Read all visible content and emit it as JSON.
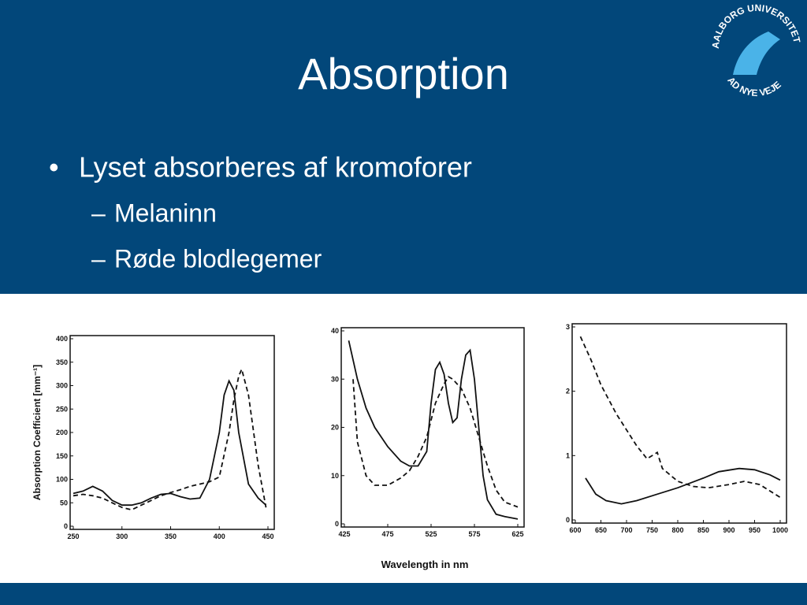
{
  "slide": {
    "title": "Absorption",
    "logo": {
      "top": "AALBORG UNIVERSITET",
      "bottom": "AD NYE VEJE"
    },
    "bullets": [
      {
        "text": "Lyset absorberes af kromoforer",
        "sub": [
          "Melaninn",
          "Røde blodlegemer"
        ]
      }
    ]
  },
  "chart_data": [
    {
      "type": "line",
      "y_label": "Absorption Coefficient [mm⁻¹]",
      "xlim": [
        250,
        450
      ],
      "xticks": [
        250,
        300,
        350,
        400,
        450
      ],
      "ylim": [
        0,
        400
      ],
      "yticks": [
        0,
        50,
        100,
        150,
        200,
        250,
        300,
        350,
        400
      ],
      "series": [
        {
          "color": "#111111",
          "dashed": false,
          "x": [
            250,
            260,
            270,
            280,
            290,
            300,
            310,
            320,
            330,
            340,
            350,
            360,
            370,
            380,
            390,
            400,
            405,
            410,
            415,
            420,
            430,
            440,
            448
          ],
          "values": [
            70,
            75,
            85,
            75,
            55,
            45,
            45,
            50,
            60,
            68,
            70,
            63,
            58,
            60,
            100,
            200,
            280,
            310,
            290,
            200,
            90,
            60,
            45
          ]
        },
        {
          "color": "#111111",
          "dashed": true,
          "x": [
            250,
            260,
            270,
            280,
            290,
            300,
            310,
            320,
            330,
            340,
            350,
            360,
            370,
            380,
            390,
            400,
            410,
            415,
            420,
            423,
            430,
            440,
            448
          ],
          "values": [
            65,
            68,
            65,
            60,
            50,
            40,
            35,
            45,
            55,
            65,
            72,
            78,
            85,
            90,
            95,
            105,
            200,
            270,
            320,
            335,
            280,
            130,
            40
          ]
        }
      ]
    },
    {
      "type": "line",
      "x_label": "Wavelength in nm",
      "xlim": [
        425,
        625
      ],
      "xticks": [
        425,
        475,
        525,
        575,
        625
      ],
      "ylim": [
        0,
        40
      ],
      "yticks": [
        0,
        10,
        20,
        30,
        40
      ],
      "series": [
        {
          "color": "#111111",
          "dashed": false,
          "x": [
            430,
            440,
            450,
            460,
            475,
            490,
            500,
            510,
            520,
            525,
            530,
            535,
            540,
            545,
            550,
            555,
            560,
            565,
            570,
            575,
            580,
            585,
            590,
            600,
            610,
            625
          ],
          "values": [
            38,
            30,
            24,
            20,
            16,
            13,
            12,
            12,
            15,
            25,
            32,
            33.5,
            31,
            25,
            21,
            22,
            30,
            35,
            36,
            30,
            20,
            10,
            5,
            2,
            1.5,
            1
          ]
        },
        {
          "color": "#111111",
          "dashed": true,
          "x": [
            435,
            440,
            450,
            460,
            475,
            490,
            500,
            510,
            520,
            530,
            540,
            545,
            550,
            560,
            570,
            580,
            590,
            600,
            610,
            625
          ],
          "values": [
            30,
            17,
            10,
            8,
            8,
            9.5,
            11,
            14,
            18,
            25,
            29,
            30.5,
            30,
            28,
            24,
            18,
            12,
            7,
            4.5,
            3.5
          ]
        }
      ]
    },
    {
      "type": "line",
      "xlim": [
        600,
        1000
      ],
      "xticks": [
        600,
        650,
        700,
        750,
        800,
        850,
        900,
        950,
        1000
      ],
      "ylim": [
        0,
        3
      ],
      "yticks": [
        0,
        1,
        2,
        3
      ],
      "series": [
        {
          "color": "#111111",
          "dashed": true,
          "x": [
            610,
            630,
            650,
            680,
            700,
            720,
            740,
            760,
            770,
            800,
            830,
            860,
            900,
            930,
            960,
            1000
          ],
          "values": [
            2.85,
            2.5,
            2.1,
            1.65,
            1.4,
            1.15,
            0.95,
            1.05,
            0.8,
            0.6,
            0.52,
            0.5,
            0.55,
            0.6,
            0.55,
            0.35
          ]
        },
        {
          "color": "#111111",
          "dashed": false,
          "x": [
            620,
            640,
            660,
            690,
            720,
            760,
            800,
            850,
            880,
            920,
            950,
            980,
            1000
          ],
          "values": [
            0.65,
            0.4,
            0.3,
            0.25,
            0.3,
            0.4,
            0.5,
            0.65,
            0.75,
            0.8,
            0.78,
            0.7,
            0.62
          ]
        }
      ]
    }
  ]
}
